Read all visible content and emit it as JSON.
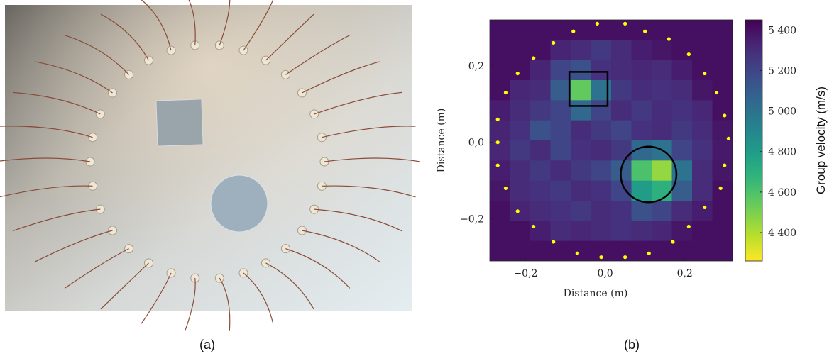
{
  "panels": {
    "a": {
      "label": "(a)"
    },
    "b": {
      "label": "(b)"
    }
  },
  "chart_data": {
    "type": "heatmap",
    "xlabel": "Distance (m)",
    "ylabel": "Distance (m)",
    "colorbar_label": "Group velocity (m/s)",
    "colormap": "viridis_r",
    "xlim": [
      -0.29,
      0.32
    ],
    "ylim": [
      -0.31,
      0.32
    ],
    "xticks": [
      {
        "value": -0.2,
        "label": "−0,2"
      },
      {
        "value": 0,
        "label": "0,0"
      },
      {
        "value": 0.2,
        "label": "0,2"
      }
    ],
    "yticks": [
      {
        "value": -0.2,
        "label": "−0,2"
      },
      {
        "value": 0,
        "label": "0,0"
      },
      {
        "value": 0.2,
        "label": "0,2"
      }
    ],
    "zlim": [
      4260,
      5450
    ],
    "zticks": [
      {
        "value": 4400,
        "label": "4 400"
      },
      {
        "value": 4600,
        "label": "4 600"
      },
      {
        "value": 4800,
        "label": "4 800"
      },
      {
        "value": 5000,
        "label": "5 000"
      },
      {
        "value": 5200,
        "label": "5 200"
      },
      {
        "value": 5400,
        "label": "5 400"
      }
    ],
    "z": [
      [
        5400,
        5400,
        5400,
        5400,
        5400,
        5400,
        5400,
        5400,
        5400,
        5400,
        5400,
        5400
      ],
      [
        5400,
        5400,
        5400,
        5330,
        5300,
        5250,
        5300,
        5350,
        5380,
        5400,
        5400,
        5400
      ],
      [
        5400,
        5400,
        5330,
        5200,
        5150,
        5280,
        5300,
        5320,
        5300,
        5350,
        5400,
        5400
      ],
      [
        5400,
        5320,
        5300,
        5100,
        4550,
        5000,
        5250,
        5300,
        5280,
        5300,
        5380,
        5400
      ],
      [
        5350,
        5300,
        5250,
        5200,
        5050,
        5200,
        5300,
        5250,
        5300,
        5280,
        5320,
        5400
      ],
      [
        5330,
        5280,
        5150,
        5200,
        5300,
        5250,
        5200,
        5280,
        5300,
        5250,
        5300,
        5380
      ],
      [
        5320,
        5250,
        5300,
        5200,
        5280,
        5300,
        5250,
        5050,
        5000,
        5200,
        5280,
        5370
      ],
      [
        5350,
        5300,
        5250,
        5300,
        5250,
        5200,
        5100,
        4600,
        4450,
        5000,
        5300,
        5380
      ],
      [
        5380,
        5300,
        5280,
        5250,
        5300,
        5280,
        5200,
        4800,
        4700,
        5100,
        5300,
        5400
      ],
      [
        5400,
        5330,
        5300,
        5280,
        5250,
        5300,
        5280,
        5150,
        5200,
        5300,
        5350,
        5400
      ],
      [
        5400,
        5400,
        5350,
        5300,
        5320,
        5300,
        5280,
        5300,
        5320,
        5380,
        5400,
        5400
      ],
      [
        5400,
        5400,
        5400,
        5400,
        5400,
        5400,
        5400,
        5400,
        5400,
        5400,
        5400,
        5400
      ]
    ],
    "sensors": {
      "color": "#ffff00",
      "x": [
        -0.02,
        0.05,
        0.1,
        0.16,
        0.21,
        0.25,
        0.28,
        0.3,
        0.31,
        0.3,
        0.29,
        0.25,
        0.21,
        0.17,
        0.11,
        0.05,
        -0.01,
        -0.07,
        -0.13,
        -0.18,
        -0.22,
        -0.25,
        -0.27,
        -0.27,
        -0.27,
        -0.25,
        -0.22,
        -0.18,
        -0.13,
        -0.08
      ],
      "y": [
        0.31,
        0.31,
        0.29,
        0.27,
        0.23,
        0.18,
        0.13,
        0.07,
        0.01,
        -0.06,
        -0.12,
        -0.17,
        -0.22,
        -0.26,
        -0.29,
        -0.3,
        -0.3,
        -0.29,
        -0.26,
        -0.22,
        -0.18,
        -0.12,
        -0.06,
        0,
        0.06,
        0.13,
        0.18,
        0.22,
        0.26,
        0.29
      ]
    },
    "regions": {
      "square": {
        "x": [
          -0.09,
          0.006
        ],
        "y": [
          0.095,
          0.184
        ]
      },
      "circle": {
        "x": 0.109,
        "y": -0.084,
        "r": 0.07
      }
    }
  }
}
